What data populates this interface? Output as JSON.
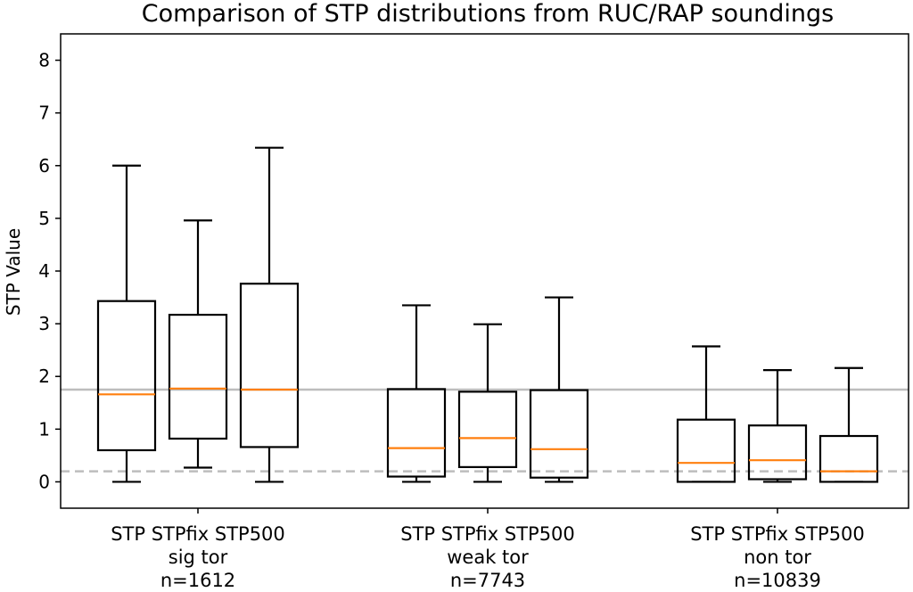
{
  "chart_data": {
    "type": "box",
    "title": "Comparison of STP distributions from RUC/RAP soundings",
    "ylabel": "STP Value",
    "xlabel": "",
    "ylim": [
      -0.5,
      8.5
    ],
    "yticks": [
      0,
      1,
      2,
      3,
      4,
      5,
      6,
      7,
      8
    ],
    "grid": false,
    "reference_lines": [
      {
        "value": 1.75,
        "style": "solid",
        "color": "#bdbdbd"
      },
      {
        "value": 0.2,
        "style": "dashed",
        "color": "#bdbdbd"
      }
    ],
    "groups": [
      {
        "label_line1": "STP STPfix STP500",
        "label_line2": "sig tor",
        "label_line3": "n=1612"
      },
      {
        "label_line1": "STP STPfix STP500",
        "label_line2": "weak tor",
        "label_line3": "n=7743"
      },
      {
        "label_line1": "STP STPfix STP500",
        "label_line2": "non tor",
        "label_line3": "n=10839"
      }
    ],
    "boxes": [
      {
        "group": 0,
        "parameter": "STP",
        "whisker_low": 0.0,
        "q1": 0.6,
        "median": 1.66,
        "q3": 3.43,
        "whisker_high": 6.0
      },
      {
        "group": 0,
        "parameter": "STPfix",
        "whisker_low": 0.27,
        "q1": 0.82,
        "median": 1.77,
        "q3": 3.17,
        "whisker_high": 4.96
      },
      {
        "group": 0,
        "parameter": "STP500",
        "whisker_low": 0.0,
        "q1": 0.66,
        "median": 1.75,
        "q3": 3.76,
        "whisker_high": 6.34
      },
      {
        "group": 1,
        "parameter": "STP",
        "whisker_low": 0.0,
        "q1": 0.1,
        "median": 0.64,
        "q3": 1.76,
        "whisker_high": 3.35
      },
      {
        "group": 1,
        "parameter": "STPfix",
        "whisker_low": 0.0,
        "q1": 0.28,
        "median": 0.83,
        "q3": 1.71,
        "whisker_high": 2.99
      },
      {
        "group": 1,
        "parameter": "STP500",
        "whisker_low": 0.0,
        "q1": 0.08,
        "median": 0.62,
        "q3": 1.74,
        "whisker_high": 3.5
      },
      {
        "group": 2,
        "parameter": "STP",
        "whisker_low": 0.0,
        "q1": 0.0,
        "median": 0.36,
        "q3": 1.18,
        "whisker_high": 2.57
      },
      {
        "group": 2,
        "parameter": "STPfix",
        "whisker_low": 0.0,
        "q1": 0.05,
        "median": 0.41,
        "q3": 1.07,
        "whisker_high": 2.12
      },
      {
        "group": 2,
        "parameter": "STP500",
        "whisker_low": 0.0,
        "q1": 0.0,
        "median": 0.2,
        "q3": 0.87,
        "whisker_high": 2.16
      }
    ],
    "colors": {
      "box": "#000000",
      "median": "#ff7f0e",
      "reference": "#bdbdbd"
    }
  }
}
